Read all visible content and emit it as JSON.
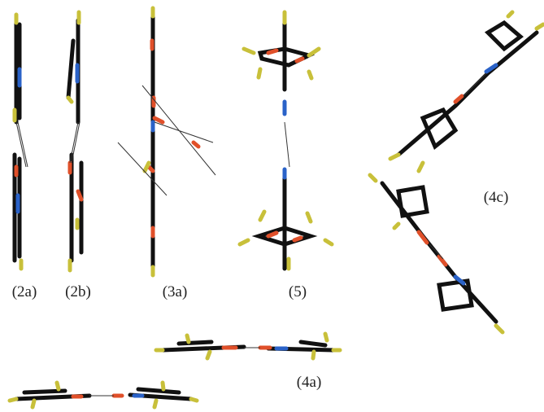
{
  "labels": {
    "l2a": "(2a)",
    "l2b": "(2b)",
    "l3a": "(3a)",
    "l5": "(5)",
    "l4c": "(4c)",
    "l4a": "(4a)"
  }
}
